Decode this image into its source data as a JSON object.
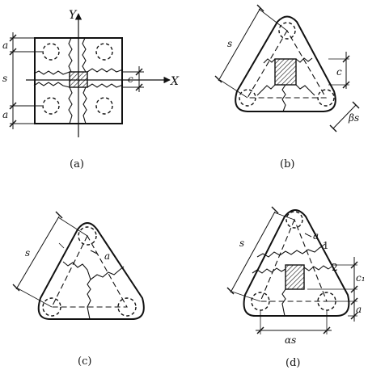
{
  "figure": {
    "panels": [
      {
        "caption": "(a)",
        "labels": {
          "y_axis": "Y",
          "x_axis": "X",
          "a_top": "a",
          "s": "s",
          "a_bottom": "a",
          "c": "c"
        }
      },
      {
        "caption": "(b)",
        "labels": {
          "s": "s",
          "c": "c",
          "beta_s": "βs"
        }
      },
      {
        "caption": "(c)",
        "labels": {
          "s": "s",
          "a": "a"
        }
      },
      {
        "caption": "(d)",
        "labels": {
          "s": "s",
          "a_top": "a",
          "line1": "1",
          "line2": "2",
          "c1": "c₁",
          "a_right": "a",
          "alpha_s": "αs"
        }
      }
    ]
  },
  "colors": {
    "ink": "#111111",
    "background": "#ffffff"
  }
}
